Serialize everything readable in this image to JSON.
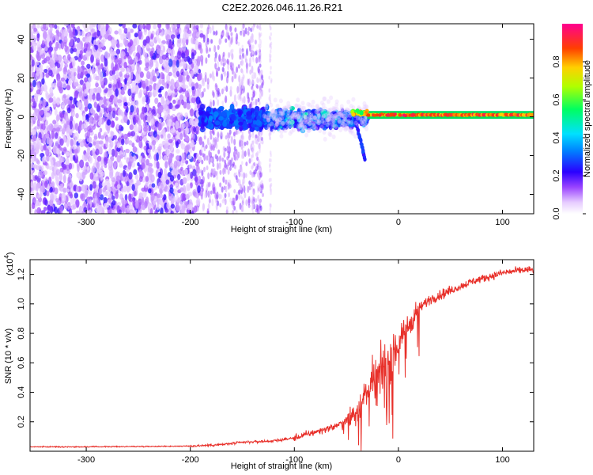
{
  "title": "C2E2.2026.046.11.26.R21",
  "colors": {
    "snr_line": "#e8302a",
    "frame": "#000000",
    "spectro_low": "#6a00ff",
    "spectro_high": "#ff2060"
  },
  "chart_data": [
    {
      "type": "heatmap",
      "xlabel": "Height of straight line (km)",
      "ylabel": "Frequency (Hz)",
      "xlim": [
        -354,
        130
      ],
      "ylim": [
        -50,
        48
      ],
      "x_ticks": [
        -300,
        -200,
        -100,
        0,
        100
      ],
      "x_tick_labels": [
        "-300",
        "-200",
        "-100",
        "0",
        "100"
      ],
      "y_ticks": [
        -40,
        -20,
        0,
        20,
        40
      ],
      "y_tick_labels": [
        "-40",
        "-20",
        "0",
        "20",
        "40"
      ],
      "colorbar": {
        "label": "Normalized spectral amplitude",
        "range": [
          0,
          1
        ],
        "ticks": [
          0.0,
          0.2,
          0.4,
          0.6,
          0.8
        ],
        "tick_labels": [
          "0.0",
          "0.2",
          "0.4",
          "0.6",
          "0.8"
        ]
      },
      "regions": [
        {
          "x_range": [
            -354,
            -190
          ],
          "freq_range": [
            -50,
            48
          ],
          "amplitude": "low, broadband scatter"
        },
        {
          "x_range": [
            -190,
            -130
          ],
          "freq_range": [
            -50,
            48
          ],
          "amplitude": "low, sparse"
        },
        {
          "x_range": [
            -190,
            -30
          ],
          "freq_range": [
            -30,
            12
          ],
          "amplitude": "medium, concentrated near 0 Hz"
        },
        {
          "x_range": [
            -30,
            130
          ],
          "freq_range": [
            -1,
            3
          ],
          "amplitude": "high, narrow band near 1 Hz"
        }
      ]
    },
    {
      "type": "line",
      "xlabel": "Height of straight line (km)",
      "ylabel": "SNR (10 * v/v)",
      "y_multiplier": "(x10",
      "y_multiplier_exp": "4",
      "xlim": [
        -354,
        130
      ],
      "ylim": [
        0,
        13000
      ],
      "x_ticks": [
        -300,
        -200,
        -100,
        0,
        100
      ],
      "x_tick_labels": [
        "-300",
        "-200",
        "-100",
        "0",
        "100"
      ],
      "y_ticks": [
        2000,
        4000,
        6000,
        8000,
        10000,
        12000
      ],
      "y_tick_labels": [
        "0.2",
        "0.4",
        "0.6",
        "0.8",
        "1.0",
        "1.2"
      ],
      "series": [
        {
          "name": "SNR",
          "x": [
            -354,
            -300,
            -250,
            -200,
            -170,
            -150,
            -120,
            -100,
            -80,
            -60,
            -50,
            -40,
            -35,
            -30,
            -25,
            -20,
            -15,
            -10,
            -5,
            0,
            5,
            10,
            15,
            20,
            25,
            30,
            40,
            50,
            60,
            70,
            80,
            90,
            100,
            110,
            120,
            130
          ],
          "y": [
            300,
            300,
            320,
            350,
            450,
            600,
            700,
            900,
            1300,
            1700,
            2100,
            2700,
            3300,
            4000,
            4500,
            5000,
            5600,
            6200,
            6800,
            7300,
            8000,
            8600,
            9200,
            9700,
            10000,
            10300,
            10600,
            10900,
            11200,
            11500,
            11700,
            11900,
            12100,
            12200,
            12300,
            12300
          ]
        }
      ]
    }
  ]
}
